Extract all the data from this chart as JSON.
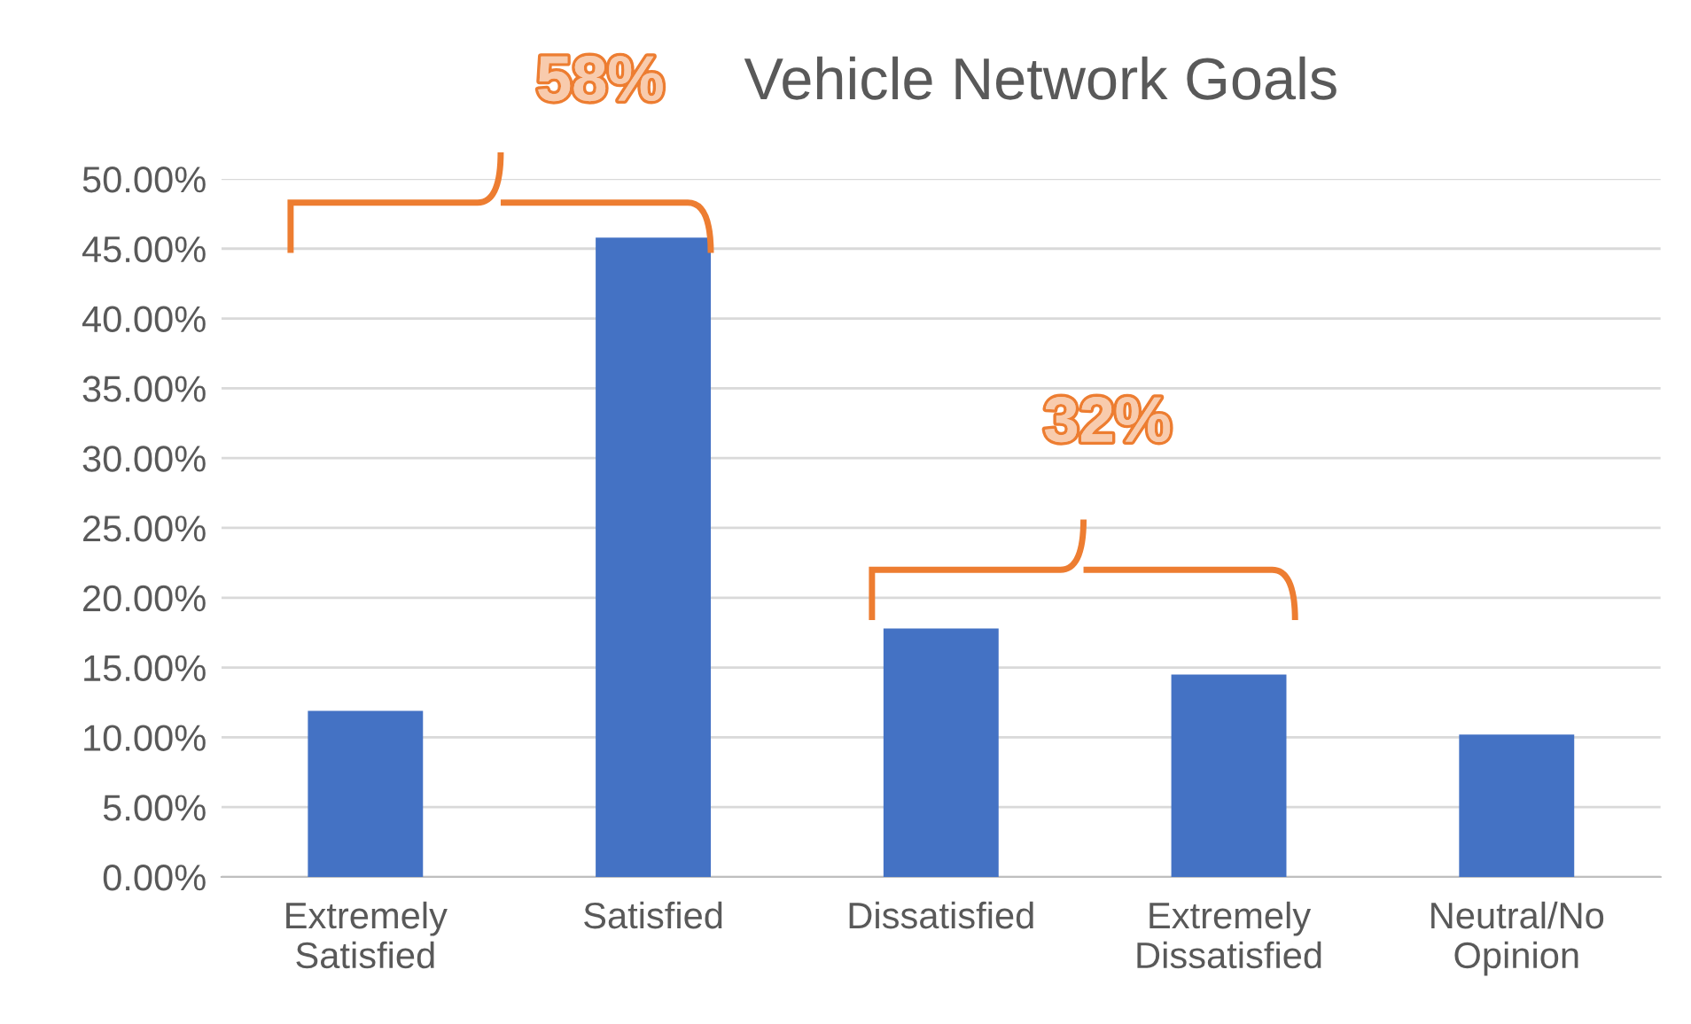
{
  "chart_data": {
    "type": "bar",
    "title": "Vehicle Network Goals",
    "categories": [
      "Extremely\nSatisfied",
      "Satisfied",
      "Dissatisfied",
      "Extremely\nDissatisfied",
      "Neutral/No\nOpinion"
    ],
    "values": [
      11.9,
      45.8,
      17.8,
      14.5,
      10.2
    ],
    "color": "#4472c4",
    "ylim": [
      0,
      50
    ],
    "yticks": [
      {
        "value": 0,
        "label": "0.00%"
      },
      {
        "value": 5,
        "label": "5.00%"
      },
      {
        "value": 10,
        "label": "10.00%"
      },
      {
        "value": 15,
        "label": "15.00%"
      },
      {
        "value": 20,
        "label": "20.00%"
      },
      {
        "value": 25,
        "label": "25.00%"
      },
      {
        "value": 30,
        "label": "30.00%"
      },
      {
        "value": 35,
        "label": "35.00%"
      },
      {
        "value": 40,
        "label": "40.00%"
      },
      {
        "value": 45,
        "label": "45.00%"
      },
      {
        "value": 50,
        "label": "50.00%"
      }
    ],
    "grid": "y",
    "legend": false,
    "annotations": [
      "58%",
      "32%"
    ]
  }
}
